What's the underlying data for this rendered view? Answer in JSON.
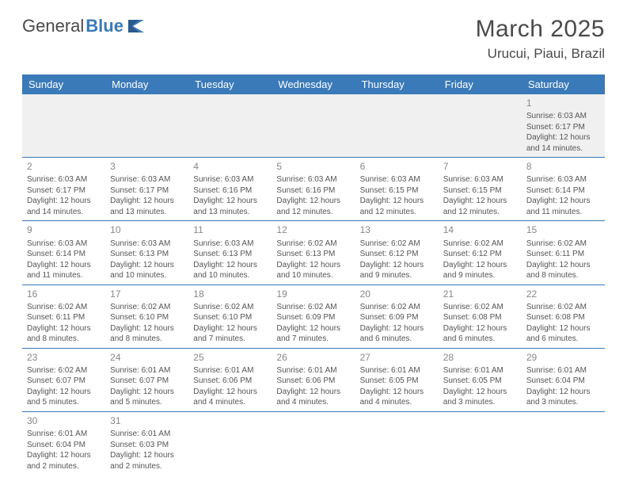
{
  "logo": {
    "text1": "General",
    "text2": "Blue"
  },
  "title": "March 2025",
  "location": "Urucui, Piaui, Brazil",
  "weekdays": [
    "Sunday",
    "Monday",
    "Tuesday",
    "Wednesday",
    "Thursday",
    "Friday",
    "Saturday"
  ],
  "colors": {
    "header_bar": "#3a7ab8",
    "row_divider": "#3a7ab8",
    "first_row_bg": "#f0f0f0",
    "text": "#555555",
    "title_text": "#4a4a4a"
  },
  "weeks": [
    [
      {
        "num": "",
        "sunrise": "",
        "sunset": "",
        "daylight": ""
      },
      {
        "num": "",
        "sunrise": "",
        "sunset": "",
        "daylight": ""
      },
      {
        "num": "",
        "sunrise": "",
        "sunset": "",
        "daylight": ""
      },
      {
        "num": "",
        "sunrise": "",
        "sunset": "",
        "daylight": ""
      },
      {
        "num": "",
        "sunrise": "",
        "sunset": "",
        "daylight": ""
      },
      {
        "num": "",
        "sunrise": "",
        "sunset": "",
        "daylight": ""
      },
      {
        "num": "1",
        "sunrise": "Sunrise: 6:03 AM",
        "sunset": "Sunset: 6:17 PM",
        "daylight": "Daylight: 12 hours and 14 minutes."
      }
    ],
    [
      {
        "num": "2",
        "sunrise": "Sunrise: 6:03 AM",
        "sunset": "Sunset: 6:17 PM",
        "daylight": "Daylight: 12 hours and 14 minutes."
      },
      {
        "num": "3",
        "sunrise": "Sunrise: 6:03 AM",
        "sunset": "Sunset: 6:17 PM",
        "daylight": "Daylight: 12 hours and 13 minutes."
      },
      {
        "num": "4",
        "sunrise": "Sunrise: 6:03 AM",
        "sunset": "Sunset: 6:16 PM",
        "daylight": "Daylight: 12 hours and 13 minutes."
      },
      {
        "num": "5",
        "sunrise": "Sunrise: 6:03 AM",
        "sunset": "Sunset: 6:16 PM",
        "daylight": "Daylight: 12 hours and 12 minutes."
      },
      {
        "num": "6",
        "sunrise": "Sunrise: 6:03 AM",
        "sunset": "Sunset: 6:15 PM",
        "daylight": "Daylight: 12 hours and 12 minutes."
      },
      {
        "num": "7",
        "sunrise": "Sunrise: 6:03 AM",
        "sunset": "Sunset: 6:15 PM",
        "daylight": "Daylight: 12 hours and 12 minutes."
      },
      {
        "num": "8",
        "sunrise": "Sunrise: 6:03 AM",
        "sunset": "Sunset: 6:14 PM",
        "daylight": "Daylight: 12 hours and 11 minutes."
      }
    ],
    [
      {
        "num": "9",
        "sunrise": "Sunrise: 6:03 AM",
        "sunset": "Sunset: 6:14 PM",
        "daylight": "Daylight: 12 hours and 11 minutes."
      },
      {
        "num": "10",
        "sunrise": "Sunrise: 6:03 AM",
        "sunset": "Sunset: 6:13 PM",
        "daylight": "Daylight: 12 hours and 10 minutes."
      },
      {
        "num": "11",
        "sunrise": "Sunrise: 6:03 AM",
        "sunset": "Sunset: 6:13 PM",
        "daylight": "Daylight: 12 hours and 10 minutes."
      },
      {
        "num": "12",
        "sunrise": "Sunrise: 6:02 AM",
        "sunset": "Sunset: 6:13 PM",
        "daylight": "Daylight: 12 hours and 10 minutes."
      },
      {
        "num": "13",
        "sunrise": "Sunrise: 6:02 AM",
        "sunset": "Sunset: 6:12 PM",
        "daylight": "Daylight: 12 hours and 9 minutes."
      },
      {
        "num": "14",
        "sunrise": "Sunrise: 6:02 AM",
        "sunset": "Sunset: 6:12 PM",
        "daylight": "Daylight: 12 hours and 9 minutes."
      },
      {
        "num": "15",
        "sunrise": "Sunrise: 6:02 AM",
        "sunset": "Sunset: 6:11 PM",
        "daylight": "Daylight: 12 hours and 8 minutes."
      }
    ],
    [
      {
        "num": "16",
        "sunrise": "Sunrise: 6:02 AM",
        "sunset": "Sunset: 6:11 PM",
        "daylight": "Daylight: 12 hours and 8 minutes."
      },
      {
        "num": "17",
        "sunrise": "Sunrise: 6:02 AM",
        "sunset": "Sunset: 6:10 PM",
        "daylight": "Daylight: 12 hours and 8 minutes."
      },
      {
        "num": "18",
        "sunrise": "Sunrise: 6:02 AM",
        "sunset": "Sunset: 6:10 PM",
        "daylight": "Daylight: 12 hours and 7 minutes."
      },
      {
        "num": "19",
        "sunrise": "Sunrise: 6:02 AM",
        "sunset": "Sunset: 6:09 PM",
        "daylight": "Daylight: 12 hours and 7 minutes."
      },
      {
        "num": "20",
        "sunrise": "Sunrise: 6:02 AM",
        "sunset": "Sunset: 6:09 PM",
        "daylight": "Daylight: 12 hours and 6 minutes."
      },
      {
        "num": "21",
        "sunrise": "Sunrise: 6:02 AM",
        "sunset": "Sunset: 6:08 PM",
        "daylight": "Daylight: 12 hours and 6 minutes."
      },
      {
        "num": "22",
        "sunrise": "Sunrise: 6:02 AM",
        "sunset": "Sunset: 6:08 PM",
        "daylight": "Daylight: 12 hours and 6 minutes."
      }
    ],
    [
      {
        "num": "23",
        "sunrise": "Sunrise: 6:02 AM",
        "sunset": "Sunset: 6:07 PM",
        "daylight": "Daylight: 12 hours and 5 minutes."
      },
      {
        "num": "24",
        "sunrise": "Sunrise: 6:01 AM",
        "sunset": "Sunset: 6:07 PM",
        "daylight": "Daylight: 12 hours and 5 minutes."
      },
      {
        "num": "25",
        "sunrise": "Sunrise: 6:01 AM",
        "sunset": "Sunset: 6:06 PM",
        "daylight": "Daylight: 12 hours and 4 minutes."
      },
      {
        "num": "26",
        "sunrise": "Sunrise: 6:01 AM",
        "sunset": "Sunset: 6:06 PM",
        "daylight": "Daylight: 12 hours and 4 minutes."
      },
      {
        "num": "27",
        "sunrise": "Sunrise: 6:01 AM",
        "sunset": "Sunset: 6:05 PM",
        "daylight": "Daylight: 12 hours and 4 minutes."
      },
      {
        "num": "28",
        "sunrise": "Sunrise: 6:01 AM",
        "sunset": "Sunset: 6:05 PM",
        "daylight": "Daylight: 12 hours and 3 minutes."
      },
      {
        "num": "29",
        "sunrise": "Sunrise: 6:01 AM",
        "sunset": "Sunset: 6:04 PM",
        "daylight": "Daylight: 12 hours and 3 minutes."
      }
    ],
    [
      {
        "num": "30",
        "sunrise": "Sunrise: 6:01 AM",
        "sunset": "Sunset: 6:04 PM",
        "daylight": "Daylight: 12 hours and 2 minutes."
      },
      {
        "num": "31",
        "sunrise": "Sunrise: 6:01 AM",
        "sunset": "Sunset: 6:03 PM",
        "daylight": "Daylight: 12 hours and 2 minutes."
      },
      {
        "num": "",
        "sunrise": "",
        "sunset": "",
        "daylight": ""
      },
      {
        "num": "",
        "sunrise": "",
        "sunset": "",
        "daylight": ""
      },
      {
        "num": "",
        "sunrise": "",
        "sunset": "",
        "daylight": ""
      },
      {
        "num": "",
        "sunrise": "",
        "sunset": "",
        "daylight": ""
      },
      {
        "num": "",
        "sunrise": "",
        "sunset": "",
        "daylight": ""
      }
    ]
  ]
}
